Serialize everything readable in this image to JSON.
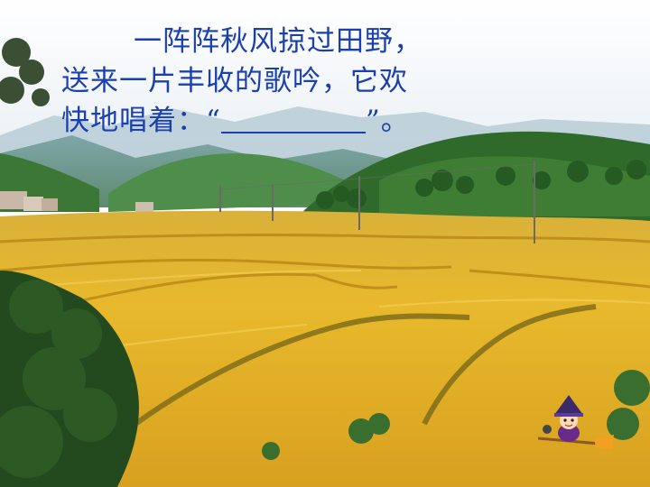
{
  "passage": {
    "line1": "一阵阵秋风掠过田野，",
    "line2": "送来一片丰收的歌吟，它欢",
    "line3_prefix": "快地唱着：“",
    "line3_suffix": "”。"
  },
  "colors": {
    "text": "#1a3fb0",
    "field_gold": "#e6b52a",
    "forest": "#2f6a2a",
    "sky": "#f4f7fb"
  },
  "icons": {
    "mascot": "witch-on-broom-icon"
  }
}
